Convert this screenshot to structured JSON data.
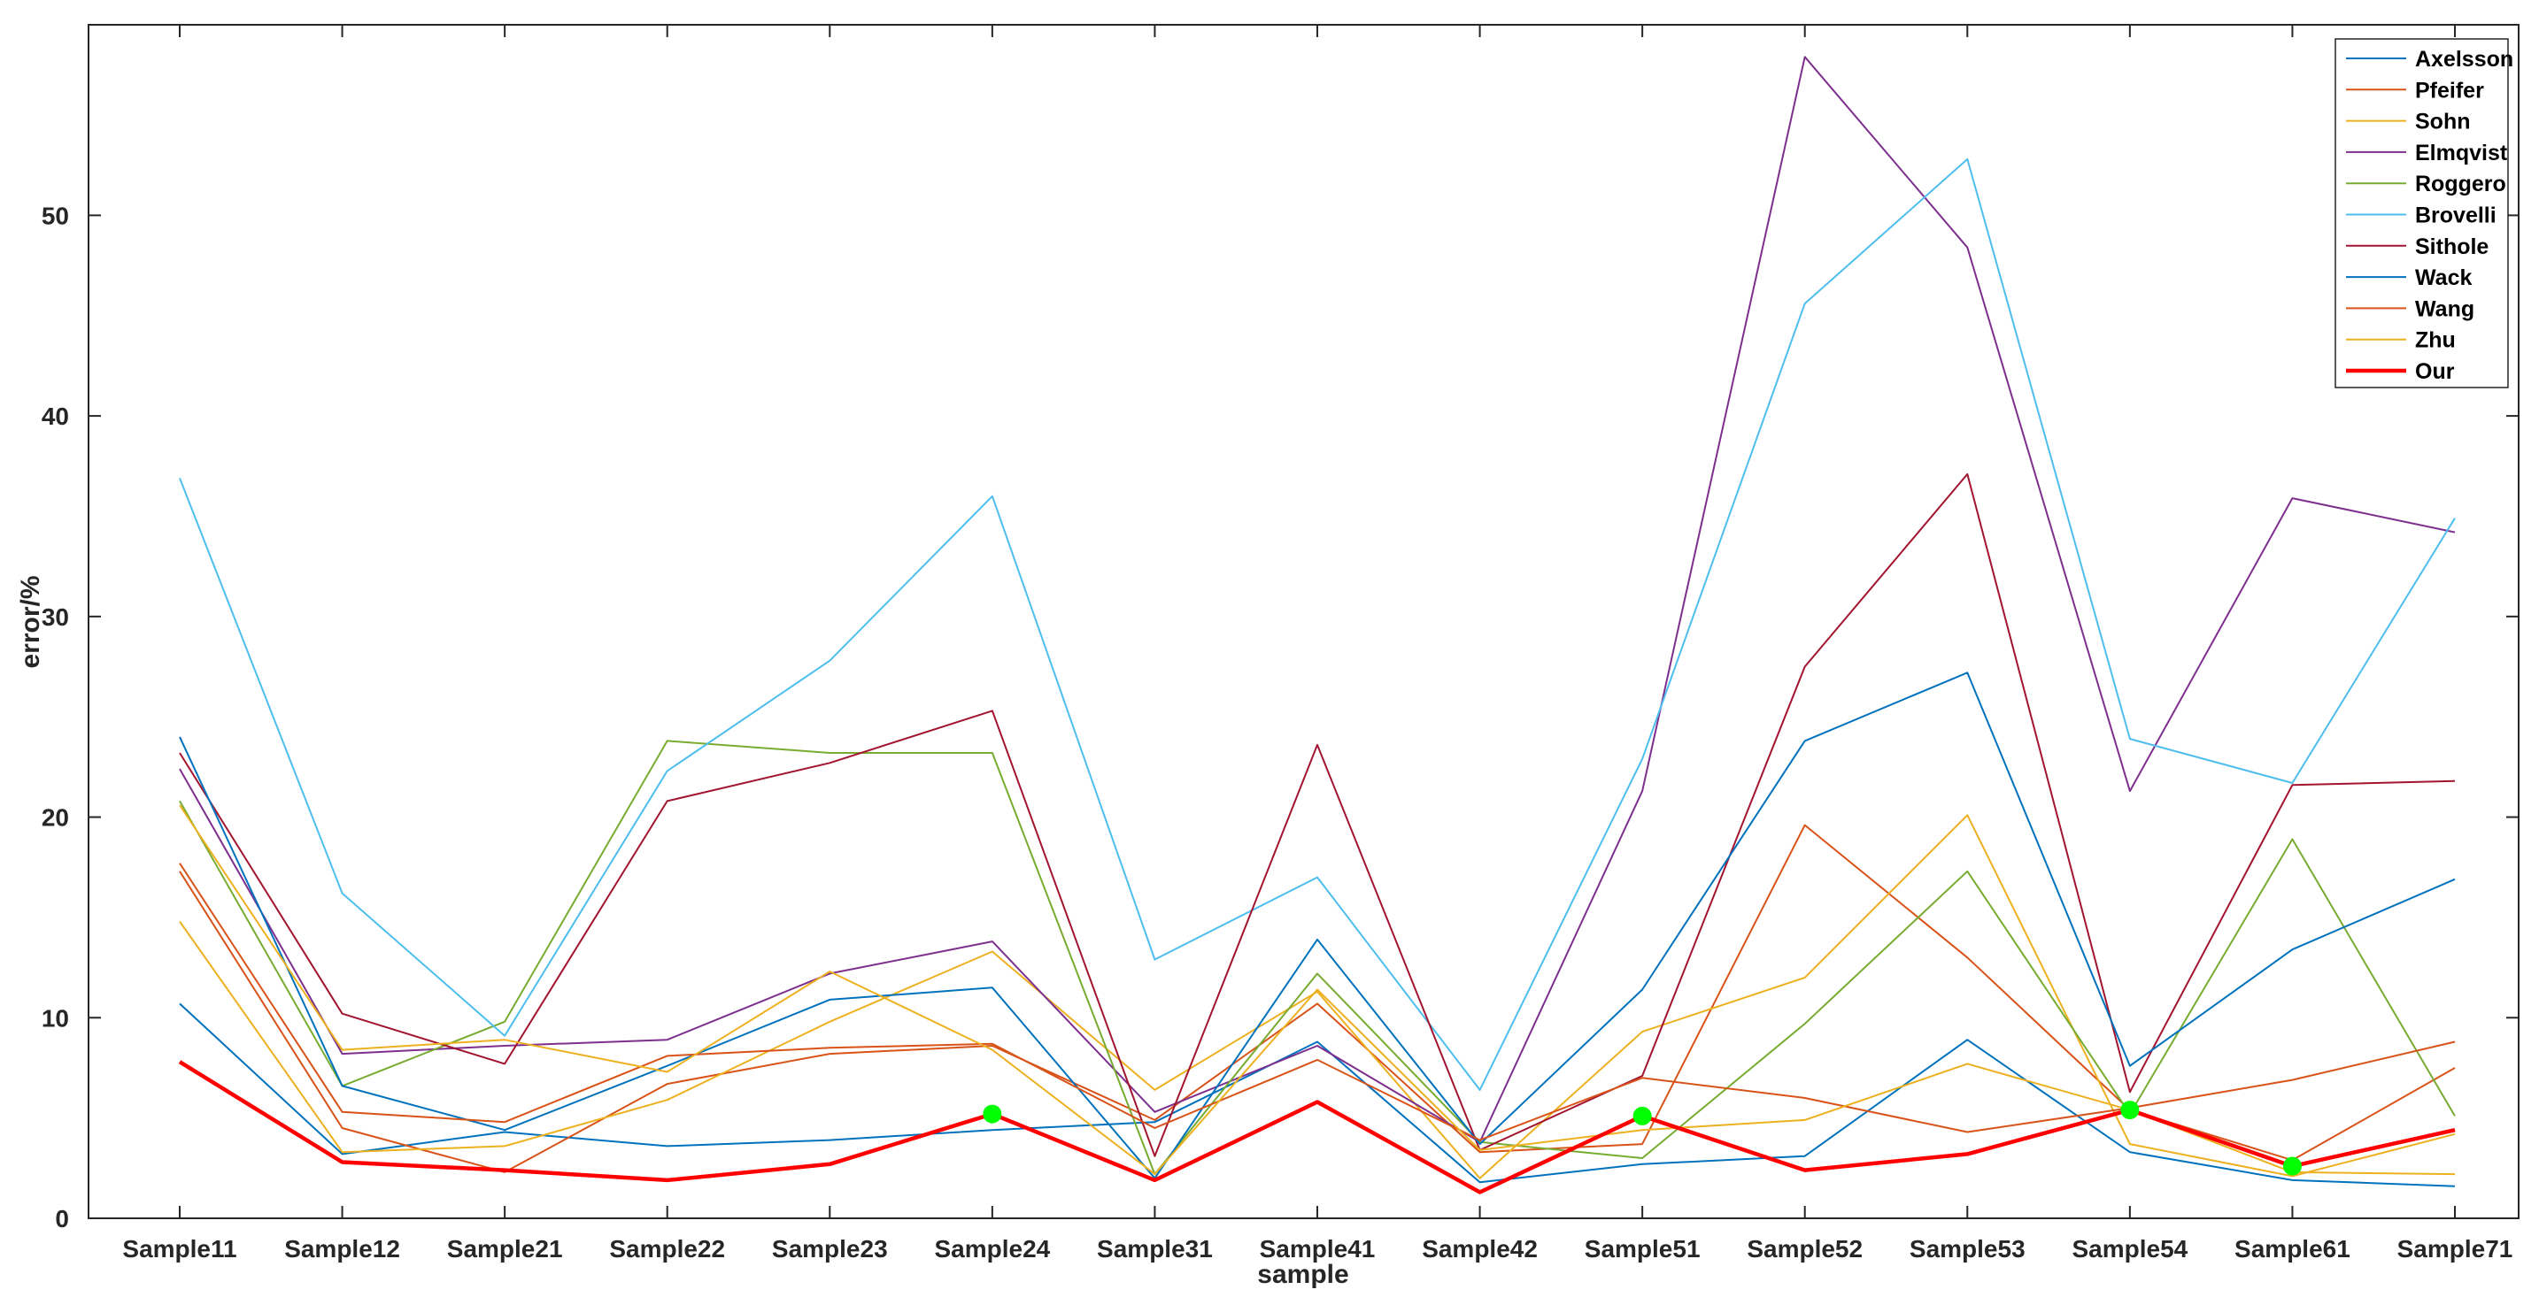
{
  "chart_data": {
    "type": "line",
    "title": "",
    "xlabel": "sample",
    "ylabel": "error/%",
    "ylim": [
      0,
      59.5
    ],
    "yticks": [
      0,
      10,
      20,
      30,
      40,
      50
    ],
    "grid": false,
    "legend_position": "top-right",
    "categories": [
      "Sample11",
      "Sample12",
      "Sample21",
      "Sample22",
      "Sample23",
      "Sample24",
      "Sample31",
      "Sample41",
      "Sample42",
      "Sample51",
      "Sample52",
      "Sample53",
      "Sample54",
      "Sample61",
      "Sample71"
    ],
    "series": [
      {
        "name": "Axelsson",
        "color": "#0072BD",
        "width": 2,
        "values": [
          10.7,
          3.2,
          4.3,
          3.6,
          3.9,
          4.4,
          4.8,
          8.8,
          1.8,
          2.7,
          3.1,
          8.9,
          3.3,
          1.9,
          1.6
        ]
      },
      {
        "name": "Pfeifer",
        "color": "#D95319",
        "width": 2,
        "values": [
          17.3,
          4.5,
          2.3,
          6.7,
          8.2,
          8.6,
          4.9,
          10.7,
          3.3,
          3.7,
          19.6,
          13.0,
          5.4,
          2.9,
          7.5
        ]
      },
      {
        "name": "Sohn",
        "color": "#EDB120",
        "width": 2,
        "values": [
          14.8,
          3.3,
          3.6,
          5.9,
          9.8,
          13.3,
          6.4,
          11.3,
          2.0,
          9.3,
          12.0,
          20.1,
          3.7,
          2.1,
          4.2
        ]
      },
      {
        "name": "Elmqvist",
        "color": "#7E2F8E",
        "width": 2,
        "values": [
          22.4,
          8.2,
          8.6,
          8.9,
          12.2,
          13.8,
          5.3,
          8.6,
          3.8,
          21.3,
          57.9,
          48.4,
          21.3,
          35.9,
          34.2
        ]
      },
      {
        "name": "Roggero",
        "color": "#77AC30",
        "width": 2,
        "values": [
          20.8,
          6.6,
          9.8,
          23.8,
          23.2,
          23.2,
          2.2,
          12.2,
          3.8,
          3.0,
          9.7,
          17.3,
          5.2,
          18.9,
          5.1
        ]
      },
      {
        "name": "Brovelli",
        "color": "#4DBEEE",
        "width": 2,
        "values": [
          36.9,
          16.2,
          9.1,
          22.3,
          27.8,
          36.0,
          12.9,
          17.0,
          6.4,
          22.9,
          45.6,
          52.8,
          23.9,
          21.7,
          34.9
        ]
      },
      {
        "name": "Sithole",
        "color": "#A2142F",
        "width": 2,
        "values": [
          23.2,
          10.2,
          7.7,
          20.8,
          22.7,
          25.3,
          3.1,
          23.6,
          3.4,
          7.1,
          27.5,
          37.1,
          6.3,
          21.6,
          21.8
        ]
      },
      {
        "name": "Wack",
        "color": "#0072BD",
        "width": 2,
        "values": [
          24.0,
          6.6,
          4.4,
          7.6,
          10.9,
          11.5,
          2.0,
          13.9,
          3.7,
          11.4,
          23.8,
          27.2,
          7.6,
          13.4,
          16.9
        ]
      },
      {
        "name": "Wang",
        "color": "#D95319",
        "width": 2,
        "values": [
          17.7,
          5.3,
          4.8,
          8.1,
          8.5,
          8.7,
          4.5,
          7.9,
          3.9,
          7.0,
          6.0,
          4.3,
          5.5,
          6.9,
          8.8
        ]
      },
      {
        "name": "Zhu",
        "color": "#EDB120",
        "width": 2,
        "values": [
          20.6,
          8.4,
          8.9,
          7.3,
          12.3,
          8.4,
          2.2,
          11.4,
          3.4,
          4.4,
          4.9,
          7.7,
          5.4,
          2.3,
          2.2
        ]
      },
      {
        "name": "Our",
        "color": "#FF0000",
        "width": 4.5,
        "values": [
          7.8,
          2.8,
          2.4,
          1.9,
          2.7,
          5.2,
          1.9,
          5.8,
          1.3,
          5.1,
          2.4,
          3.2,
          5.4,
          2.6,
          4.4
        ]
      }
    ],
    "highlight_markers": {
      "color": "#00FF00",
      "points": [
        {
          "category": "Sample24",
          "value": 5.2
        },
        {
          "category": "Sample51",
          "value": 5.1
        },
        {
          "category": "Sample54",
          "value": 5.4
        },
        {
          "category": "Sample61",
          "value": 2.6
        }
      ]
    }
  }
}
